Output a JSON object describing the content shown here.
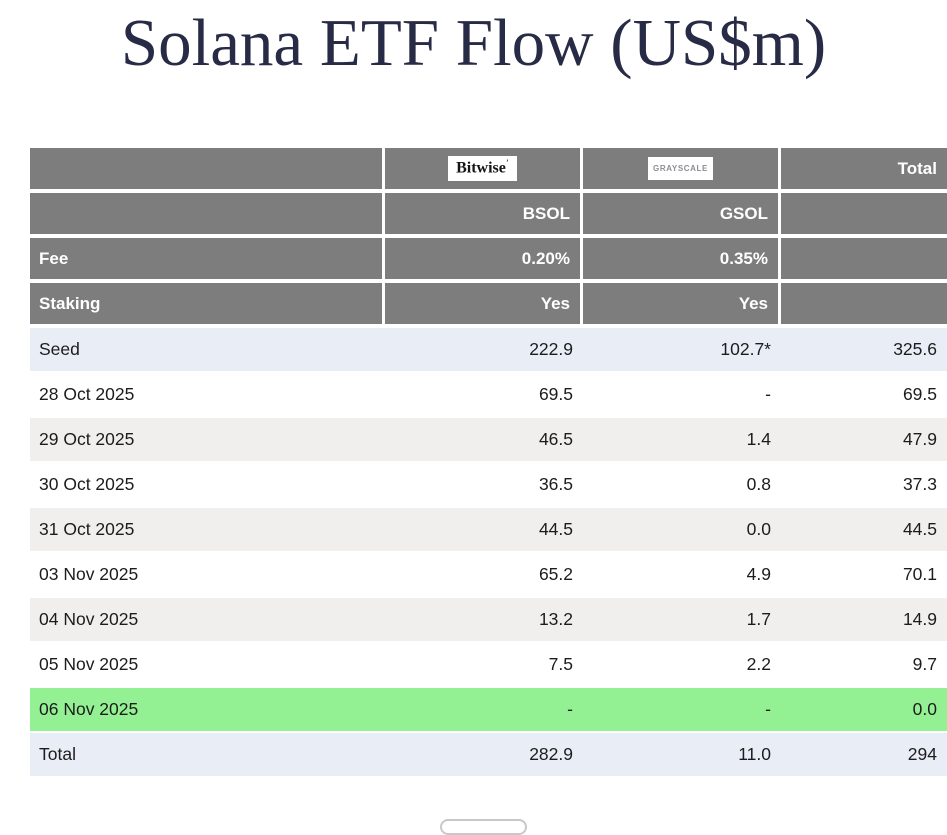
{
  "title": "Solana ETF Flow (US$m)",
  "colors": {
    "header_gray": "#7d7d7d",
    "row_blue": "#e8edf6",
    "row_alt_gray": "#f0efed",
    "row_highlight_green": "#94f193",
    "title_navy": "#272b45",
    "header_text": "#ffffff"
  },
  "header": {
    "bitwise_logo": "Bitwise",
    "bitwise_mark": "’",
    "grayscale_logo": "GRAYSCALE",
    "total_label": "Total",
    "bsol": "BSOL",
    "gsol": "GSOL"
  },
  "fee": {
    "label": "Fee",
    "bsol": "0.20%",
    "gsol": "0.35%"
  },
  "staking": {
    "label": "Staking",
    "bsol": "Yes",
    "gsol": "Yes"
  },
  "chart_data": {
    "type": "table",
    "title": "Solana ETF Flow (US$m)",
    "columns": [
      "",
      "BSOL (Bitwise)",
      "GSOL (Grayscale)",
      "Total"
    ],
    "meta_rows": [
      {
        "label": "Fee",
        "bsol": "0.20%",
        "gsol": "0.35%",
        "total": ""
      },
      {
        "label": "Staking",
        "bsol": "Yes",
        "gsol": "Yes",
        "total": ""
      }
    ],
    "rows": [
      {
        "label": "Seed",
        "bsol": "222.9",
        "gsol": "102.7*",
        "total": "325.6",
        "bg": "blue"
      },
      {
        "label": "28 Oct 2025",
        "bsol": "69.5",
        "gsol": "-",
        "total": "69.5",
        "bg": "white"
      },
      {
        "label": "29 Oct 2025",
        "bsol": "46.5",
        "gsol": "1.4",
        "total": "47.9",
        "bg": "gray"
      },
      {
        "label": "30 Oct 2025",
        "bsol": "36.5",
        "gsol": "0.8",
        "total": "37.3",
        "bg": "white"
      },
      {
        "label": "31 Oct 2025",
        "bsol": "44.5",
        "gsol": "0.0",
        "total": "44.5",
        "bg": "gray"
      },
      {
        "label": "03 Nov 2025",
        "bsol": "65.2",
        "gsol": "4.9",
        "total": "70.1",
        "bg": "white"
      },
      {
        "label": "04 Nov 2025",
        "bsol": "13.2",
        "gsol": "1.7",
        "total": "14.9",
        "bg": "gray"
      },
      {
        "label": "05 Nov 2025",
        "bsol": "7.5",
        "gsol": "2.2",
        "total": "9.7",
        "bg": "white"
      },
      {
        "label": "06 Nov 2025",
        "bsol": "-",
        "gsol": "-",
        "total": "0.0",
        "bg": "green"
      },
      {
        "label": "Total",
        "bsol": "282.9",
        "gsol": "11.0",
        "total": "294",
        "bg": "blue"
      }
    ]
  }
}
